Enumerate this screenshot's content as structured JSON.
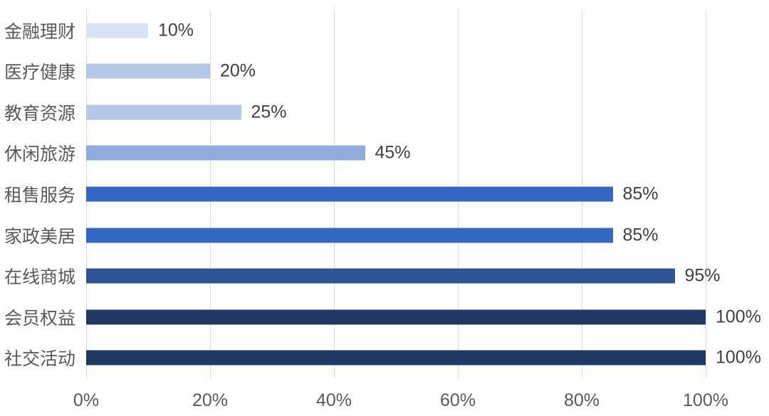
{
  "chart_data": {
    "type": "bar",
    "orientation": "horizontal",
    "categories": [
      "金融理财",
      "医疗健康",
      "教育资源",
      "休闲旅游",
      "租售服务",
      "家政美居",
      "在线商城",
      "会员权益",
      "社交活动"
    ],
    "values": [
      10,
      20,
      25,
      45,
      85,
      85,
      95,
      100,
      100
    ],
    "value_labels": [
      "10%",
      "20%",
      "25%",
      "45%",
      "85%",
      "85%",
      "95%",
      "100%",
      "100%"
    ],
    "bar_colors": [
      "#DAE3F3",
      "#B4C7E7",
      "#B4C7E7",
      "#8FAADC",
      "#3268C4",
      "#3268C4",
      "#2F5597",
      "#1F3864",
      "#1F3864"
    ],
    "x_ticks": [
      "0%",
      "20%",
      "40%",
      "60%",
      "80%",
      "100%"
    ],
    "x_tick_values": [
      0,
      20,
      40,
      60,
      80,
      100
    ],
    "xlim": [
      0,
      100
    ],
    "grid": true,
    "gridline_color": "#D9D9D9",
    "legend": "none",
    "category_label_color": "#595959",
    "value_label_color": "#404040",
    "tick_label_color": "#595959",
    "background_color": "#FFFFFF"
  }
}
